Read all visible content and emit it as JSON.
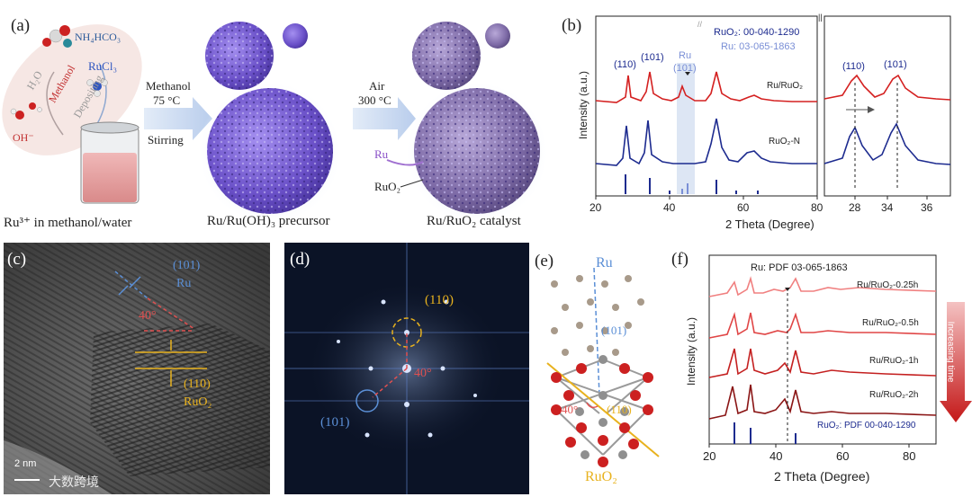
{
  "panel_a": {
    "label": "(a)",
    "reagents": {
      "nh4hco3": "NH₄HCO₃",
      "rucl3": "RuCl₃",
      "h2o": "H₂O",
      "methanol": "Methanol",
      "depositing": "Depositing",
      "oh": "OH⁻"
    },
    "step1": {
      "solvent": "Methanol",
      "temp": "75 °C",
      "action": "Stirring"
    },
    "step2": {
      "gas": "Air",
      "temp": "300 °C"
    },
    "labels": {
      "ru": "Ru",
      "ruo2": "RuO₂"
    },
    "captions": [
      "Ru³⁺ in methanol/water",
      "Ru/Ru(OH)₃ precursor",
      "Ru/RuO₂ catalyst"
    ]
  },
  "panel_b": {
    "label": "(b)",
    "legend_ruo2": "RuO₂: 00-040-1290",
    "legend_ru": "Ru: 03-065-1863",
    "peak_labels": [
      "(110)",
      "(101)",
      "Ru",
      "(101)",
      "(110)",
      "(101)"
    ],
    "series_names": [
      "Ru/RuO₂",
      "RuO₂-N"
    ],
    "ylabel": "Intensity (a.u.)",
    "xlabel": "2 Theta (Degree)",
    "ticks_left": [
      "20",
      "40",
      "60",
      "80"
    ],
    "ticks_right": [
      "28",
      "34",
      "36"
    ]
  },
  "panel_c": {
    "label": "(c)",
    "ru_plane": "(101)",
    "ru": "Ru",
    "angle": "40°",
    "ruo2_plane": "(110)",
    "ruo2": "RuO₂",
    "scale": "2 nm"
  },
  "panel_d": {
    "label": "(d)",
    "spot1": "(110)",
    "angle": "40°",
    "spot2": "(101)"
  },
  "panel_e": {
    "label": "(e)",
    "ru": "Ru",
    "ru_plane": "(101)",
    "angle": "40°",
    "ruo2_plane": "(110)",
    "ruo2": "RuO₂"
  },
  "panel_f": {
    "label": "(f)",
    "ref_ru": "Ru: PDF 03-065-1863",
    "ref_ruo2": "RuO₂: PDF 00-040-1290",
    "series_names": [
      "Ru/RuO₂-0.25h",
      "Ru/RuO₂-0.5h",
      "Ru/RuO₂-1h",
      "Ru/RuO₂-2h"
    ],
    "arrow_text": "Increasing time",
    "ylabel": "Intensity (a.u.)",
    "xlabel": "2 Theta (Degree)",
    "ticks": [
      "20",
      "40",
      "60",
      "80"
    ]
  },
  "watermark": "大数跨境",
  "colors": {
    "ru_blue": "#5b8fd6",
    "ruo2_gold": "#e8b21e",
    "red": "#d42020",
    "navy": "#1d2b8f",
    "purple": "#7a60d0"
  }
}
